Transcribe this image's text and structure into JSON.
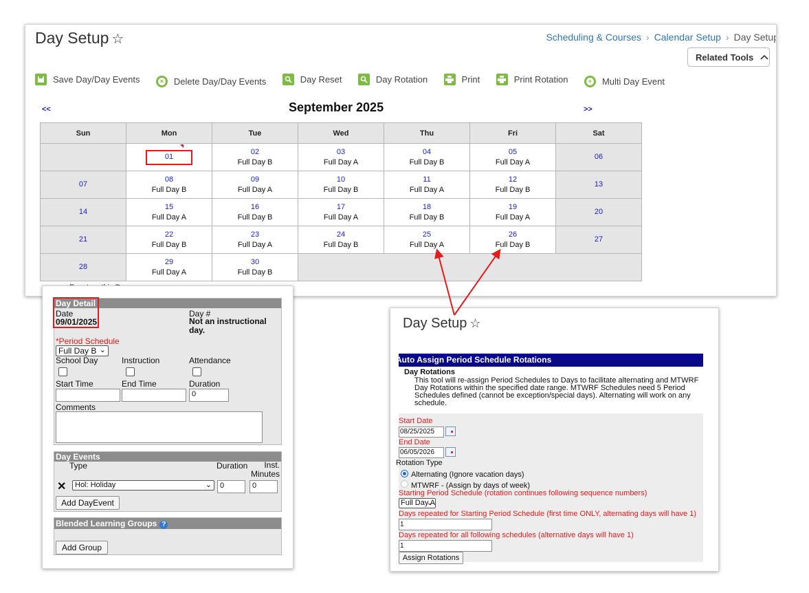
{
  "main": {
    "title": "Day Setup",
    "breadcrumb": [
      "Scheduling & Courses",
      "Calendar Setup",
      "Day Setup"
    ],
    "related_tools": "Related Tools",
    "toolbar": {
      "save": "Save Day/Day Events",
      "delete": "Delete Day/Day Events",
      "reset": "Day Reset",
      "rotation": "Day Rotation",
      "print": "Print",
      "print_rotation": "Print Rotation",
      "multi": "Multi Day Event"
    },
    "nav_prev": "<<",
    "nav_next": ">>",
    "month_title": "September 2025",
    "weekdays": [
      "Sun",
      "Mon",
      "Tue",
      "Wed",
      "Thu",
      "Fri",
      "Sat"
    ],
    "weeks": [
      [
        {
          "d": "",
          "s": ""
        },
        {
          "d": "01",
          "s": ""
        },
        {
          "d": "02",
          "s": "Full Day B"
        },
        {
          "d": "03",
          "s": "Full Day A"
        },
        {
          "d": "04",
          "s": "Full Day B"
        },
        {
          "d": "05",
          "s": "Full Day A"
        },
        {
          "d": "06",
          "s": ""
        }
      ],
      [
        {
          "d": "07",
          "s": ""
        },
        {
          "d": "08",
          "s": "Full Day B"
        },
        {
          "d": "09",
          "s": "Full Day A"
        },
        {
          "d": "10",
          "s": "Full Day B"
        },
        {
          "d": "11",
          "s": "Full Day A"
        },
        {
          "d": "12",
          "s": "Full Day B"
        },
        {
          "d": "13",
          "s": ""
        }
      ],
      [
        {
          "d": "14",
          "s": ""
        },
        {
          "d": "15",
          "s": "Full Day A"
        },
        {
          "d": "16",
          "s": "Full Day B"
        },
        {
          "d": "17",
          "s": "Full Day A"
        },
        {
          "d": "18",
          "s": "Full Day B"
        },
        {
          "d": "19",
          "s": "Full Day A"
        },
        {
          "d": "20",
          "s": ""
        }
      ],
      [
        {
          "d": "21",
          "s": ""
        },
        {
          "d": "22",
          "s": "Full Day B"
        },
        {
          "d": "23",
          "s": "Full Day A"
        },
        {
          "d": "24",
          "s": "Full Day B"
        },
        {
          "d": "25",
          "s": "Full Day A"
        },
        {
          "d": "26",
          "s": "Full Day B"
        },
        {
          "d": "27",
          "s": ""
        }
      ],
      [
        {
          "d": "28",
          "s": ""
        },
        {
          "d": "29",
          "s": "Full Day A"
        },
        {
          "d": "30",
          "s": "Full Day B"
        }
      ]
    ],
    "legend": "Event on this Day"
  },
  "detail": {
    "header": "Day Detail",
    "date_label": "Date",
    "date_value": "09/01/2025",
    "dayno_label": "Day #",
    "dayno_value": "Not an instructional day.",
    "period_label": "*Period Schedule",
    "period_value": "Full Day B",
    "school_day": "School Day",
    "instruction": "Instruction",
    "attendance": "Attendance",
    "start_time": "Start Time",
    "end_time": "End Time",
    "duration": "Duration",
    "duration_value": "0",
    "comments": "Comments",
    "events_header": "Day Events",
    "type": "Type",
    "duration2": "Duration",
    "inst_minutes": "Inst. Minutes",
    "event_type": "Hol: Holiday",
    "event_duration": "0",
    "event_minutes": "0",
    "add_dayevent": "Add DayEvent",
    "blended_header": "Blended Learning Groups",
    "add_group": "Add Group"
  },
  "rotation": {
    "title": "Day Setup",
    "header": "Auto Assign Period Schedule Rotations",
    "subheader": "Day Rotations",
    "desc": [
      "This tool will re-assign Period Schedules to Days to facilitate alternating and MTWRF",
      "Day Rotations within the specified date range. MTWRF Schedules need 5 Period",
      "Schedules defined (cannot be exception/special days). Alternating will work on any",
      "schedule."
    ],
    "start_label": "Start Date",
    "start_value": "08/25/2025",
    "end_label": "End Date",
    "end_value": "06/05/2026",
    "type_label": "Rotation Type",
    "opt_alt": "Alternating (Ignore vacation days)",
    "opt_mtwrf": "MTWRF - (Assign by days of week)",
    "starting_label": "Starting Period Schedule (rotation continues following sequence numbers)",
    "starting_value": "Full Day A",
    "repeat_first_label": "Days repeated for Starting Period Schedule (first time ONLY, alternating days will have 1)",
    "repeat_first_value": "1",
    "repeat_all_label": "Days repeated for all following schedules (alternative days will have 1)",
    "repeat_all_value": "1",
    "assign_btn": "Assign Rotations"
  },
  "colors": {
    "accent_green": "#7cbc42",
    "link_blue": "#2e78b7",
    "day_number_blue": "#1b22c4",
    "highlight_red": "#e31b1b",
    "header_navy": "#0a0a88"
  }
}
